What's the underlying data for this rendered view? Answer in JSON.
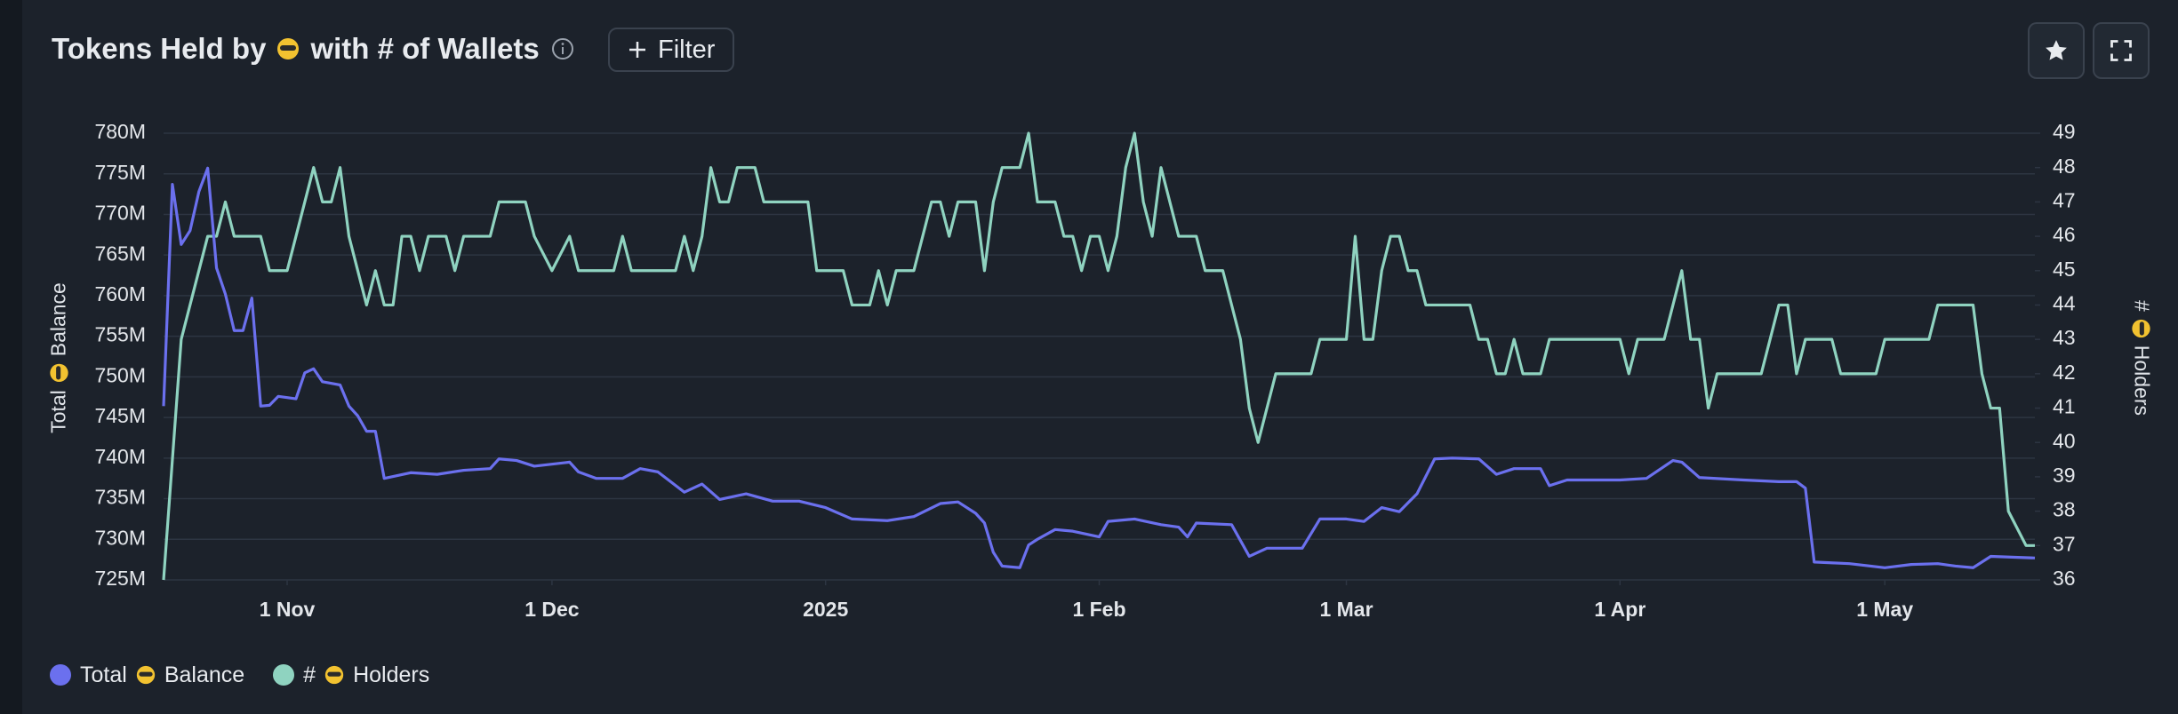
{
  "chart_data": {
    "type": "line",
    "title": [
      "Tokens Held by",
      "with # of Wallets"
    ],
    "filter_label": "Filter",
    "ylabel": [
      "Total",
      "Balance"
    ],
    "y2label": [
      "#",
      "Holders"
    ],
    "xlim": [
      "2024-10-18",
      "2025-05-18"
    ],
    "xticks": [
      {
        "value": "2024-11-01",
        "label": "1 Nov"
      },
      {
        "value": "2024-12-01",
        "label": "1 Dec"
      },
      {
        "value": "2025-01-01",
        "label": "2025"
      },
      {
        "value": "2025-02-01",
        "label": "1 Feb"
      },
      {
        "value": "2025-03-01",
        "label": "1 Mar"
      },
      {
        "value": "2025-04-01",
        "label": "1 Apr"
      },
      {
        "value": "2025-05-01",
        "label": "1 May"
      }
    ],
    "ylim": [
      725,
      780
    ],
    "yticks": [
      {
        "value": 725,
        "label": "725M"
      },
      {
        "value": 730,
        "label": "730M"
      },
      {
        "value": 735,
        "label": "735M"
      },
      {
        "value": 740,
        "label": "740M"
      },
      {
        "value": 745,
        "label": "745M"
      },
      {
        "value": 750,
        "label": "750M"
      },
      {
        "value": 755,
        "label": "755M"
      },
      {
        "value": 760,
        "label": "760M"
      },
      {
        "value": 765,
        "label": "765M"
      },
      {
        "value": 770,
        "label": "770M"
      },
      {
        "value": 775,
        "label": "775M"
      },
      {
        "value": 780,
        "label": "780M"
      }
    ],
    "y2lim": [
      36,
      49
    ],
    "y2ticks": [
      36,
      37,
      38,
      39,
      40,
      41,
      42,
      43,
      44,
      45,
      46,
      47,
      48,
      49
    ],
    "grid": true,
    "series": [
      {
        "name": [
          "Total",
          "Balance"
        ],
        "color": "#6b70ee",
        "x": [
          "2024-10-18",
          "2024-10-19",
          "2024-10-20",
          "2024-10-21",
          "2024-10-22",
          "2024-10-23",
          "2024-10-24",
          "2024-10-25",
          "2024-10-26",
          "2024-10-27",
          "2024-10-28",
          "2024-10-29",
          "2024-10-30",
          "2024-10-31",
          "2024-11-02",
          "2024-11-03",
          "2024-11-04",
          "2024-11-05",
          "2024-11-07",
          "2024-11-08",
          "2024-11-09",
          "2024-11-10",
          "2024-11-11",
          "2024-11-12",
          "2024-11-15",
          "2024-11-18",
          "2024-11-21",
          "2024-11-24",
          "2024-11-25",
          "2024-11-27",
          "2024-11-29",
          "2024-12-03",
          "2024-12-04",
          "2024-12-06",
          "2024-12-09",
          "2024-12-11",
          "2024-12-13",
          "2024-12-16",
          "2024-12-18",
          "2024-12-20",
          "2024-12-23",
          "2024-12-26",
          "2024-12-29",
          "2025-01-01",
          "2025-01-04",
          "2025-01-08",
          "2025-01-11",
          "2025-01-14",
          "2025-01-16",
          "2025-01-18",
          "2025-01-19",
          "2025-01-20",
          "2025-01-21",
          "2025-01-23",
          "2025-01-24",
          "2025-01-25",
          "2025-01-27",
          "2025-01-29",
          "2025-02-01",
          "2025-02-02",
          "2025-02-05",
          "2025-02-08",
          "2025-02-10",
          "2025-02-11",
          "2025-02-12",
          "2025-02-16",
          "2025-02-18",
          "2025-02-20",
          "2025-02-24",
          "2025-02-26",
          "2025-03-01",
          "2025-03-03",
          "2025-03-05",
          "2025-03-07",
          "2025-03-09",
          "2025-03-11",
          "2025-03-13",
          "2025-03-16",
          "2025-03-18",
          "2025-03-20",
          "2025-03-23",
          "2025-03-24",
          "2025-03-26",
          "2025-03-29",
          "2025-04-01",
          "2025-04-04",
          "2025-04-07",
          "2025-04-08",
          "2025-04-10",
          "2025-04-15",
          "2025-04-19",
          "2025-04-21",
          "2025-04-22",
          "2025-04-23",
          "2025-04-27",
          "2025-05-01",
          "2025-05-04",
          "2025-05-07",
          "2025-05-09",
          "2025-05-11",
          "2025-05-13",
          "2025-05-18"
        ],
        "values": [
          746.4,
          773.7,
          766.3,
          768,
          772.8,
          775.7,
          763.4,
          760.2,
          755.7,
          755.7,
          759.7,
          746.4,
          746.5,
          747.6,
          747.3,
          750.5,
          751,
          749.4,
          749,
          746.4,
          745.2,
          743.3,
          743.3,
          737.5,
          738.2,
          738,
          738.5,
          738.7,
          739.9,
          739.7,
          739,
          739.5,
          738.3,
          737.5,
          737.5,
          738.7,
          738.3,
          735.8,
          736.8,
          734.9,
          735.6,
          734.7,
          734.7,
          733.9,
          732.5,
          732.3,
          732.8,
          734.4,
          734.6,
          733.2,
          732,
          728.4,
          726.7,
          726.5,
          729.3,
          730,
          731.2,
          731,
          730.3,
          732.2,
          732.5,
          731.8,
          731.5,
          730.3,
          732,
          731.8,
          727.9,
          728.9,
          728.9,
          732.5,
          732.5,
          732.2,
          733.9,
          733.4,
          735.6,
          739.9,
          740,
          739.9,
          738,
          738.7,
          738.7,
          736.6,
          737.3,
          737.3,
          737.3,
          737.5,
          739.7,
          739.5,
          737.6,
          737.3,
          737.1,
          737.1,
          736.3,
          727.2,
          727,
          726.5,
          726.9,
          727,
          726.7,
          726.5,
          727.9,
          727.7
        ]
      },
      {
        "name": [
          "#",
          "Holders"
        ],
        "color": "#8fd3c0",
        "axis": "y2",
        "x": [
          "2024-10-18",
          "2024-10-20",
          "2024-10-23",
          "2024-10-24",
          "2024-10-25",
          "2024-10-26",
          "2024-10-29",
          "2024-10-30",
          "2024-11-01",
          "2024-11-04",
          "2024-11-05",
          "2024-11-06",
          "2024-11-07",
          "2024-11-08",
          "2024-11-10",
          "2024-11-11",
          "2024-11-12",
          "2024-11-13",
          "2024-11-14",
          "2024-11-15",
          "2024-11-16",
          "2024-11-17",
          "2024-11-19",
          "2024-11-20",
          "2024-11-21",
          "2024-11-24",
          "2024-11-25",
          "2024-11-28",
          "2024-11-29",
          "2024-12-01",
          "2024-12-03",
          "2024-12-04",
          "2024-12-08",
          "2024-12-09",
          "2024-12-10",
          "2024-12-15",
          "2024-12-16",
          "2024-12-17",
          "2024-12-18",
          "2024-12-19",
          "2024-12-20",
          "2024-12-21",
          "2024-12-22",
          "2024-12-24",
          "2024-12-25",
          "2024-12-30",
          "2024-12-31",
          "2025-01-03",
          "2025-01-04",
          "2025-01-06",
          "2025-01-07",
          "2025-01-08",
          "2025-01-09",
          "2025-01-11",
          "2025-01-13",
          "2025-01-14",
          "2025-01-15",
          "2025-01-16",
          "2025-01-18",
          "2025-01-19",
          "2025-01-20",
          "2025-01-21",
          "2025-01-23",
          "2025-01-24",
          "2025-01-25",
          "2025-01-27",
          "2025-01-28",
          "2025-01-29",
          "2025-01-30",
          "2025-01-31",
          "2025-02-01",
          "2025-02-02",
          "2025-02-03",
          "2025-02-04",
          "2025-02-05",
          "2025-02-06",
          "2025-02-07",
          "2025-02-08",
          "2025-02-10",
          "2025-02-12",
          "2025-02-13",
          "2025-02-15",
          "2025-02-17",
          "2025-02-18",
          "2025-02-19",
          "2025-02-21",
          "2025-02-25",
          "2025-02-26",
          "2025-03-01",
          "2025-03-02",
          "2025-03-03",
          "2025-03-04",
          "2025-03-05",
          "2025-03-06",
          "2025-03-07",
          "2025-03-08",
          "2025-03-09",
          "2025-03-10",
          "2025-03-15",
          "2025-03-16",
          "2025-03-17",
          "2025-03-18",
          "2025-03-19",
          "2025-03-20",
          "2025-03-21",
          "2025-03-23",
          "2025-03-24",
          "2025-04-01",
          "2025-04-02",
          "2025-04-03",
          "2025-04-06",
          "2025-04-08",
          "2025-04-09",
          "2025-04-10",
          "2025-04-11",
          "2025-04-12",
          "2025-04-17",
          "2025-04-19",
          "2025-04-20",
          "2025-04-21",
          "2025-04-22",
          "2025-04-25",
          "2025-04-26",
          "2025-04-30",
          "2025-05-01",
          "2025-05-06",
          "2025-05-07",
          "2025-05-11",
          "2025-05-12",
          "2025-05-13",
          "2025-05-14",
          "2025-05-15",
          "2025-05-17",
          "2025-05-18"
        ],
        "values": [
          36,
          43,
          46,
          46,
          47,
          46,
          46,
          45,
          45,
          48,
          47,
          47,
          48,
          46,
          44,
          45,
          44,
          44,
          46,
          46,
          45,
          46,
          46,
          45,
          46,
          46,
          47,
          47,
          46,
          45,
          46,
          45,
          45,
          46,
          45,
          45,
          46,
          45,
          46,
          48,
          47,
          47,
          48,
          48,
          47,
          47,
          45,
          45,
          44,
          44,
          45,
          44,
          45,
          45,
          47,
          47,
          46,
          47,
          47,
          45,
          47,
          48,
          48,
          49,
          47,
          47,
          46,
          46,
          45,
          46,
          46,
          45,
          46,
          48,
          49,
          47,
          46,
          48,
          46,
          46,
          45,
          45,
          43,
          41,
          40,
          42,
          42,
          43,
          43,
          46,
          43,
          43,
          45,
          46,
          46,
          45,
          45,
          44,
          44,
          43,
          43,
          42,
          42,
          43,
          42,
          42,
          43,
          43,
          42,
          43,
          43,
          45,
          43,
          43,
          41,
          42,
          42,
          44,
          44,
          42,
          43,
          43,
          42,
          42,
          43,
          43,
          44,
          44,
          42,
          41,
          41,
          38,
          37,
          37
        ]
      }
    ]
  }
}
